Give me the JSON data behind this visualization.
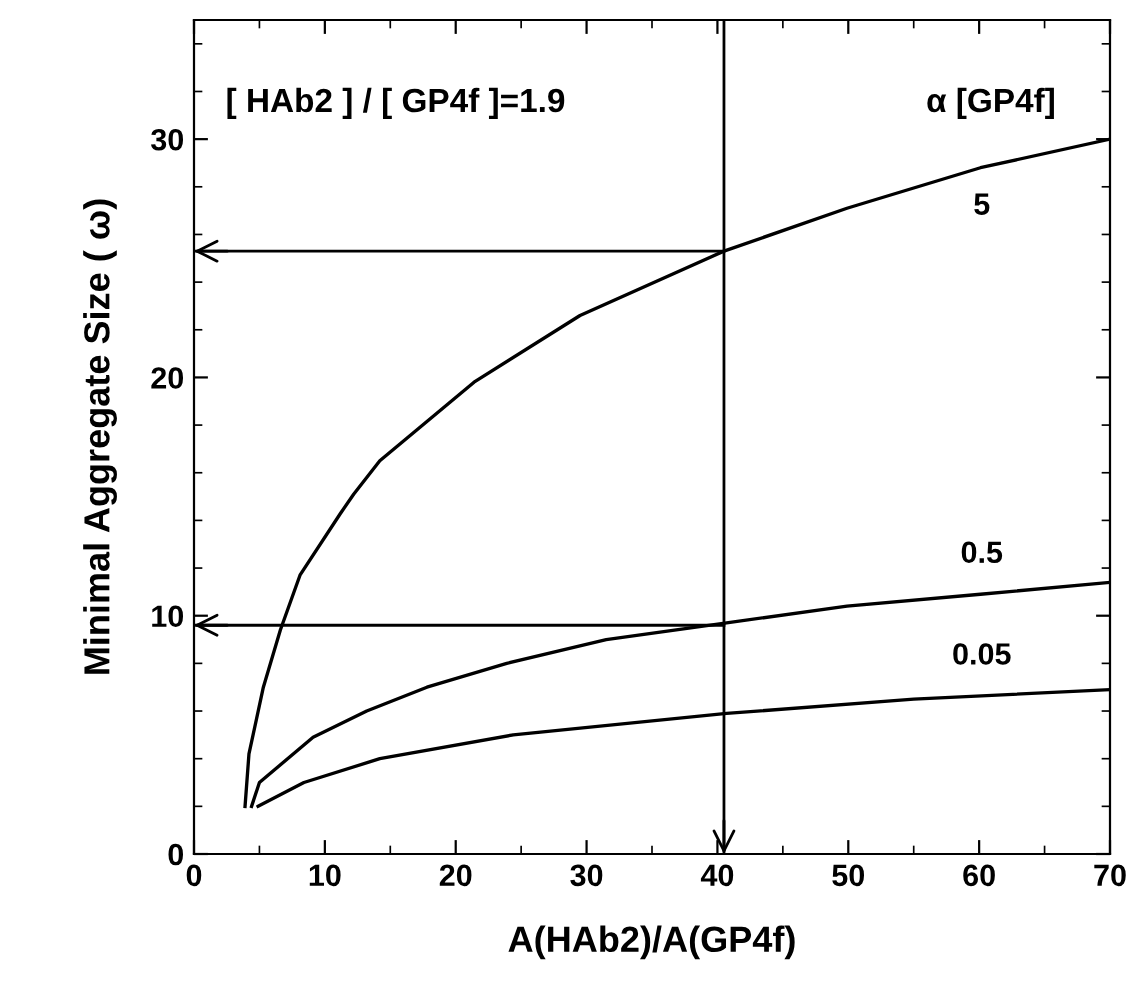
{
  "chart_data": {
    "type": "line",
    "xlabel": "A(HAb2)/A(GP4f)",
    "ylabel": "Minimal Aggregate Size ( ω)",
    "legend_title": "α [GP4f]",
    "annotations": [
      "[ HAb2 ] / [ GP4f ]=1.9"
    ],
    "series": [
      {
        "name": "5",
        "color": "#000000",
        "x": [
          3.9,
          4.2,
          5.3,
          6.6,
          8.1,
          11.2,
          12.2,
          14.2,
          21.4,
          29.5,
          40.5,
          49.9,
          60.1,
          70
        ],
        "values": [
          2.0,
          4.2,
          7.0,
          9.4,
          11.7,
          14.3,
          15.1,
          16.5,
          19.8,
          22.6,
          25.3,
          27.1,
          28.8,
          30.0
        ]
      },
      {
        "name": "0.5",
        "color": "#000000",
        "x": [
          4.4,
          5.0,
          9.1,
          13.2,
          17.8,
          23.9,
          31.5,
          40.7,
          49.9,
          60.1,
          70
        ],
        "values": [
          2.0,
          3.0,
          4.9,
          6.0,
          7.0,
          8.0,
          9.0,
          9.7,
          10.4,
          10.9,
          11.4
        ]
      },
      {
        "name": "0.05",
        "color": "#000000",
        "x": [
          4.9,
          8.4,
          14.2,
          24.4,
          40.7,
          55,
          70
        ],
        "values": [
          2.0,
          3.0,
          4.0,
          5.0,
          5.9,
          6.5,
          6.9
        ]
      }
    ],
    "ref_lines": [
      {
        "axis": "x",
        "value": 40.5,
        "color": "#000000"
      },
      {
        "axis": "y",
        "value": 25.3,
        "color": "#000000"
      },
      {
        "axis": "y",
        "value": 9.6,
        "color": "#000000"
      }
    ],
    "xlim": [
      0,
      70
    ],
    "ylim": [
      0,
      35
    ],
    "xticks": [
      0,
      10,
      20,
      30,
      40,
      50,
      60,
      70
    ],
    "yticks": [
      0,
      10,
      20,
      30
    ],
    "grid": false,
    "legend": false,
    "marker": "none",
    "line_style": "solid"
  }
}
